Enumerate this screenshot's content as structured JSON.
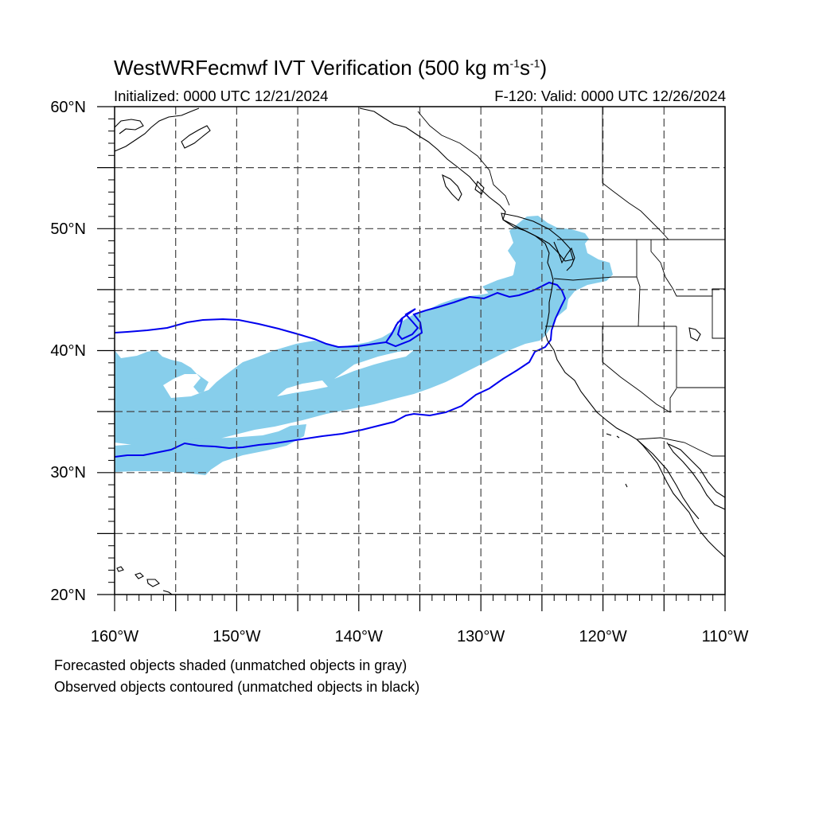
{
  "title": {
    "model": "WestWRFecmwf IVT Verification",
    "threshold_prefix": "(500 kg m",
    "exp1": "-1",
    "mid": "s",
    "exp2": "-1",
    "suffix": ")"
  },
  "initialized": "Initialized: 0000 UTC 12/21/2024",
  "valid": "F-120: Valid: 0000 UTC 12/26/2024",
  "lat_labels": [
    "60°N",
    "50°N",
    "40°N",
    "30°N",
    "20°N"
  ],
  "lon_labels": [
    "160°W",
    "150°W",
    "140°W",
    "130°W",
    "120°W",
    "110°W"
  ],
  "captions": [
    "Forecasted objects shaded (unmatched objects in gray)",
    "Observed objects contoured (unmatched objects in black)"
  ],
  "colors": {
    "forecast_fill": "#87ceeb",
    "observed_contour": "#0000ee",
    "gridline": "#444444",
    "coastline": "#000000"
  },
  "map": {
    "projection": "equidistant cylindrical",
    "lon_range": [
      -160,
      -110
    ],
    "lat_range": [
      20,
      60
    ],
    "grid_step_deg": 5
  }
}
